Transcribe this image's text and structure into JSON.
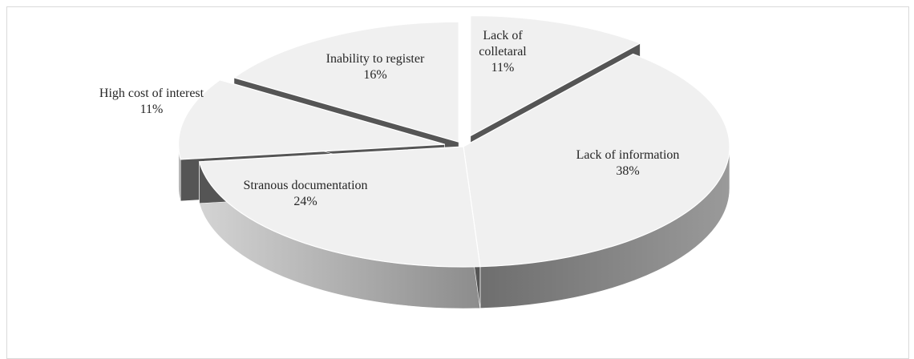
{
  "chart_data": {
    "type": "pie",
    "style": "3d-exploded",
    "title": "",
    "slices": [
      {
        "label": "Lack of colletaral",
        "label_lines": [
          "Lack of",
          "colletaral"
        ],
        "percent": 11,
        "percent_label": "11%"
      },
      {
        "label": "Lack of information",
        "label_lines": [
          "Lack of information"
        ],
        "percent": 38,
        "percent_label": "38%"
      },
      {
        "label": "Stranous documentation",
        "label_lines": [
          "Stranous documentation"
        ],
        "percent": 24,
        "percent_label": "24%"
      },
      {
        "label": "High cost of interest",
        "label_lines": [
          "High cost of interest"
        ],
        "percent": 11,
        "percent_label": "11%"
      },
      {
        "label": "Inability to register",
        "label_lines": [
          "Inability to register"
        ],
        "percent": 16,
        "percent_label": "16%"
      }
    ],
    "colors": {
      "top": "#f0f0f0",
      "side_dark": "#555555",
      "side_mid": "#8c8c8c",
      "side_light": "#d4d4d4",
      "frame": "#d9d9d9"
    }
  }
}
